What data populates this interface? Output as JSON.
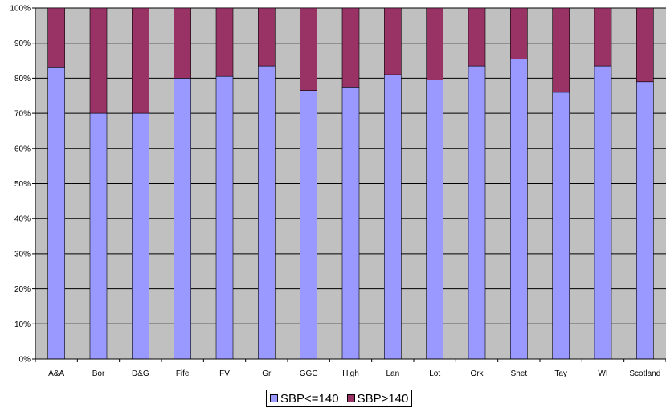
{
  "chart_data": {
    "type": "bar",
    "stacked": true,
    "categories": [
      "A&A",
      "Bor",
      "D&G",
      "Fife",
      "FV",
      "Gr",
      "GGC",
      "High",
      "Lan",
      "Lot",
      "Ork",
      "Shet",
      "Tay",
      "WI",
      "Scotland"
    ],
    "series": [
      {
        "name": "SBP<=140",
        "color": "#9999ff",
        "values": [
          83,
          70,
          70,
          80,
          80.5,
          83.5,
          76.5,
          77.5,
          81,
          79.5,
          83.5,
          85.5,
          76,
          83.5,
          79
        ]
      },
      {
        "name": "SBP>140",
        "color": "#993366",
        "values": [
          17,
          30,
          30,
          20,
          19.5,
          16.5,
          23.5,
          22.5,
          19,
          20.5,
          16.5,
          14.5,
          24,
          16.5,
          21
        ]
      }
    ],
    "yticks": [
      "0%",
      "10%",
      "20%",
      "30%",
      "40%",
      "50%",
      "60%",
      "70%",
      "80%",
      "90%",
      "100%"
    ],
    "ylim": [
      0,
      100
    ],
    "plot_background": "#c0c0c0",
    "grid": true,
    "legend_position": "bottom"
  }
}
